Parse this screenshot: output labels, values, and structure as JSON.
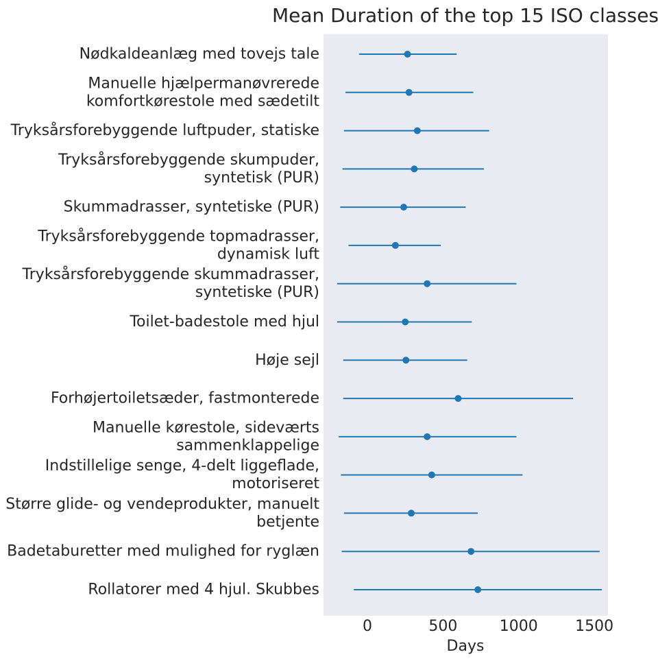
{
  "chart_data": {
    "type": "scatter",
    "title": "Mean Duration of the top 15 ISO classes",
    "xlabel": "Days",
    "ylabel": "",
    "xlim": [
      -290,
      1590
    ],
    "xticks": [
      0,
      500,
      1000,
      1500
    ],
    "grid": false,
    "background": "#eaeaf2",
    "color": "#1f77b4",
    "categories": [
      [
        "Nødkaldeanlæg med tovejs tale"
      ],
      [
        "Manuelle hjælpermanøvrerede",
        "komfortkørestole med sædetilt"
      ],
      [
        "Tryksårsforebyggende luftpuder, statiske"
      ],
      [
        "Tryksårsforebyggende skumpuder,",
        "syntetisk (PUR)"
      ],
      [
        "Skummadrasser, syntetiske (PUR)"
      ],
      [
        "Tryksårsforebyggende topmadrasser,",
        "dynamisk luft"
      ],
      [
        "Tryksårsforebyggende skummadrasser,",
        "syntetiske (PUR)"
      ],
      [
        "Toilet-badestole med hjul"
      ],
      [
        "Høje sejl"
      ],
      [
        "Forhøjertoiletsæder, fastmonterede"
      ],
      [
        "Manuelle kørestole, sideværts",
        "sammenklappelige"
      ],
      [
        "Indstillelige senge, 4-delt liggeflade,",
        "motoriseret"
      ],
      [
        "Større glide- og vendeprodukter, manuelt",
        "betjente"
      ],
      [
        "Badetaburetter med mulighed for ryglæn"
      ],
      [
        "Rollatorer med 4 hjul. Skubbes"
      ]
    ],
    "mean": [
      265,
      275,
      330,
      310,
      240,
      185,
      395,
      250,
      255,
      600,
      395,
      425,
      290,
      685,
      730
    ],
    "lower": [
      -55,
      -145,
      -155,
      -165,
      -180,
      -125,
      -200,
      -200,
      -160,
      -160,
      -190,
      -175,
      -155,
      -170,
      -90
    ],
    "upper": [
      590,
      700,
      805,
      770,
      650,
      485,
      985,
      690,
      660,
      1360,
      985,
      1025,
      730,
      1535,
      1550
    ]
  }
}
